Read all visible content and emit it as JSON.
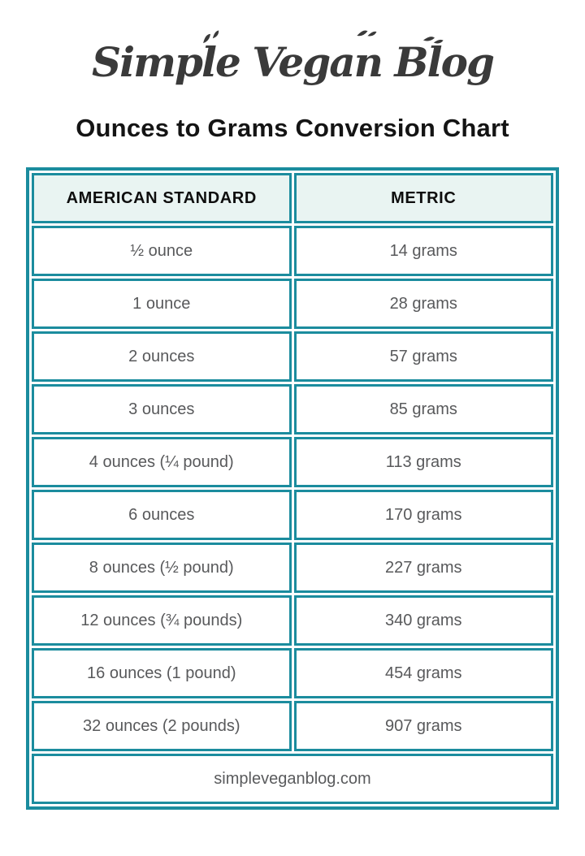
{
  "logo": {
    "text": "Simple Vegan Blog"
  },
  "title": "Ounces to Grams Conversion Chart",
  "colors": {
    "teal_border": "#1b8c9e",
    "header_background": "#e9f4f2",
    "header_text": "#0e0e0e",
    "data_text": "#58595b",
    "title_text": "#141414",
    "page_background": "#ffffff"
  },
  "chart_data": {
    "type": "table",
    "title": "Ounces to Grams Conversion Chart",
    "columns": [
      "AMERICAN STANDARD",
      "METRIC"
    ],
    "rows": [
      [
        "½ ounce",
        "14 grams"
      ],
      [
        "1 ounce",
        "28 grams"
      ],
      [
        "2 ounces",
        "57 grams"
      ],
      [
        "3 ounces",
        "85 grams"
      ],
      [
        "4 ounces (¼ pound)",
        "113 grams"
      ],
      [
        "6 ounces",
        "170 grams"
      ],
      [
        "8 ounces (½ pound)",
        "227 grams"
      ],
      [
        "12 ounces (¾ pounds)",
        "340 grams"
      ],
      [
        "16 ounces (1 pound)",
        "454 grams"
      ],
      [
        "32 ounces (2 pounds)",
        "907 grams"
      ]
    ],
    "footer": "simpleveganblog.com"
  }
}
